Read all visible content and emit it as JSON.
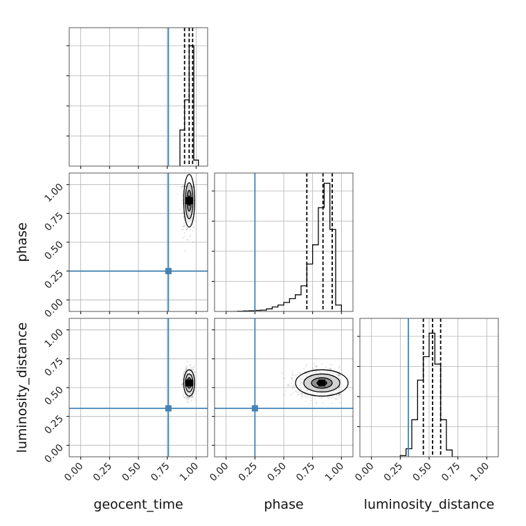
{
  "chart_data": {
    "type": "corner",
    "parameters": [
      "geocent_time",
      "phase",
      "luminosity_distance"
    ],
    "tick_values": [
      0.0,
      0.25,
      0.5,
      0.75,
      1.0
    ],
    "tick_labels": [
      "0.00",
      "0.25",
      "0.50",
      "0.75",
      "1.00"
    ],
    "axis_range": [
      -0.1,
      1.1
    ],
    "grid": true,
    "colors": {
      "truth": "#4682b4",
      "hist": "#000000",
      "quantile": "#000000",
      "grid": "#b0b0b0"
    },
    "truths": {
      "geocent_time": 0.76,
      "phase": 0.25,
      "luminosity_distance": 0.32
    },
    "quantiles": {
      "geocent_time": [
        0.9,
        0.94,
        0.97
      ],
      "phase": [
        0.7,
        0.84,
        0.92
      ],
      "luminosity_distance": [
        0.45,
        0.53,
        0.6
      ]
    },
    "histograms": {
      "geocent_time": {
        "bin_edges": [
          0.86,
          0.9,
          0.94,
          0.98,
          1.02
        ],
        "counts": [
          0.3,
          0.55,
          1.0,
          0.05
        ],
        "max": 1.15
      },
      "phase": {
        "bin_edges": [
          0.0,
          0.05,
          0.1,
          0.15,
          0.2,
          0.25,
          0.3,
          0.35,
          0.4,
          0.45,
          0.5,
          0.55,
          0.6,
          0.65,
          0.7,
          0.75,
          0.8,
          0.85,
          0.9,
          0.95,
          1.0
        ],
        "counts": [
          0.0,
          0.0,
          0.002,
          0.004,
          0.005,
          0.008,
          0.01,
          0.02,
          0.035,
          0.05,
          0.07,
          0.1,
          0.13,
          0.2,
          0.37,
          0.52,
          0.81,
          1.0,
          0.64,
          0.05
        ],
        "max": 1.08
      },
      "luminosity_distance": {
        "bin_edges": [
          0.25,
          0.3,
          0.35,
          0.4,
          0.45,
          0.5,
          0.55,
          0.6,
          0.65,
          0.7,
          0.75
        ],
        "counts": [
          0.01,
          0.065,
          0.3,
          0.62,
          0.81,
          1.0,
          0.75,
          0.3,
          0.055,
          0.0
        ],
        "max": 1.12
      }
    },
    "panels_2d": [
      {
        "x": "geocent_time",
        "y": "phase",
        "center": [
          0.94,
          0.86
        ],
        "spread": [
          0.025,
          0.12
        ],
        "n_points": 700
      },
      {
        "x": "geocent_time",
        "y": "luminosity_distance",
        "center": [
          0.94,
          0.54
        ],
        "spread": [
          0.025,
          0.06
        ],
        "n_points": 700
      },
      {
        "x": "phase",
        "y": "luminosity_distance",
        "center": [
          0.83,
          0.54
        ],
        "spread": [
          0.12,
          0.06
        ],
        "n_points": 900
      }
    ]
  }
}
